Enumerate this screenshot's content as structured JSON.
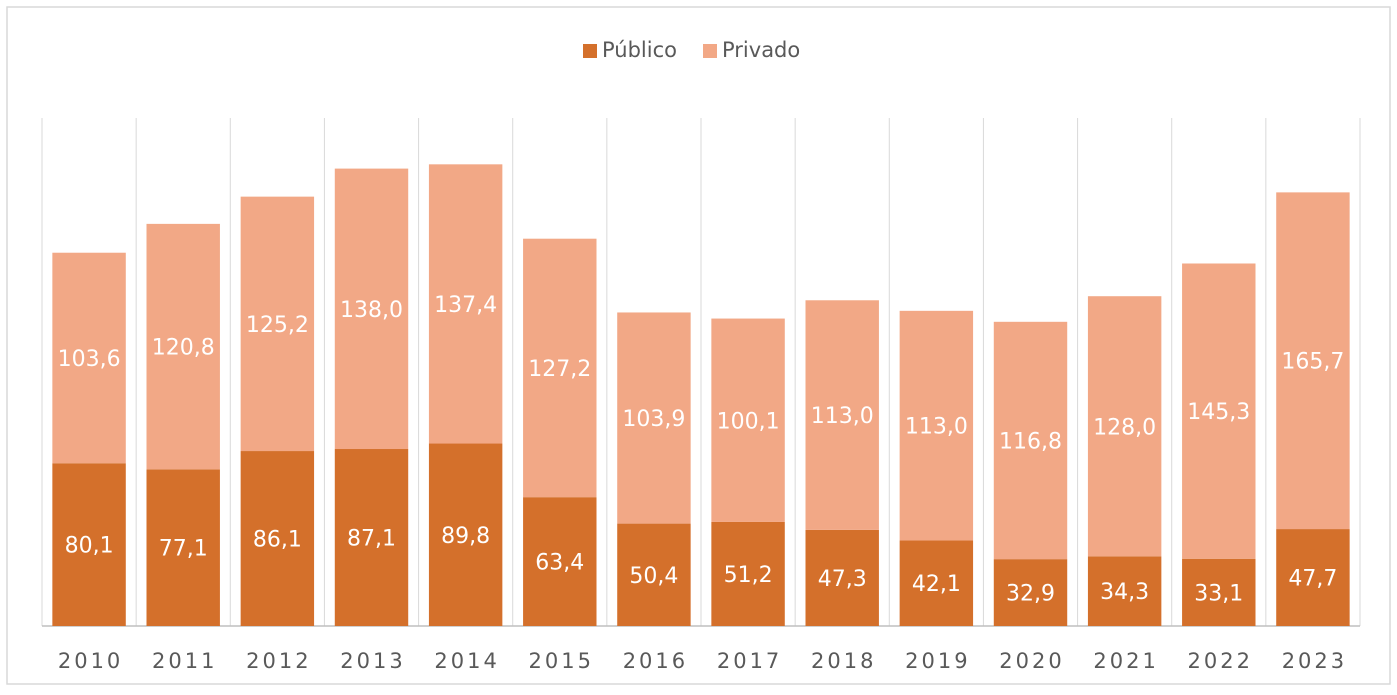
{
  "chart_data": {
    "type": "stacked_bar",
    "categories": [
      "2010",
      "2011",
      "2012",
      "2013",
      "2014",
      "2015",
      "2016",
      "2017",
      "2018",
      "2019",
      "2020",
      "2021",
      "2022",
      "2023"
    ],
    "series": [
      {
        "name": "Público",
        "color": "#d4702b",
        "values": [
          80.1,
          77.1,
          86.1,
          87.1,
          89.8,
          63.4,
          50.4,
          51.2,
          47.3,
          42.1,
          32.9,
          34.3,
          33.1,
          47.7
        ],
        "value_labels": [
          "80,1",
          "77,1",
          "86,1",
          "87,1",
          "89,8",
          "63,4",
          "50,4",
          "51,2",
          "47,3",
          "42,1",
          "32,9",
          "34,3",
          "33,1",
          "47,7"
        ]
      },
      {
        "name": "Privado",
        "color": "#f2a886",
        "values": [
          103.6,
          120.8,
          125.2,
          138.0,
          137.4,
          127.2,
          103.9,
          100.1,
          113.0,
          113.0,
          116.8,
          128.0,
          145.3,
          165.7
        ],
        "value_labels": [
          "103,6",
          "120,8",
          "125,2",
          "138,0",
          "137,4",
          "127,2",
          "103,9",
          "100,1",
          "113,0",
          "113,0",
          "116,8",
          "128,0",
          "145,3",
          "165,7"
        ]
      }
    ],
    "ylim": [
      0,
      250
    ],
    "grid": true,
    "legend": "top"
  }
}
